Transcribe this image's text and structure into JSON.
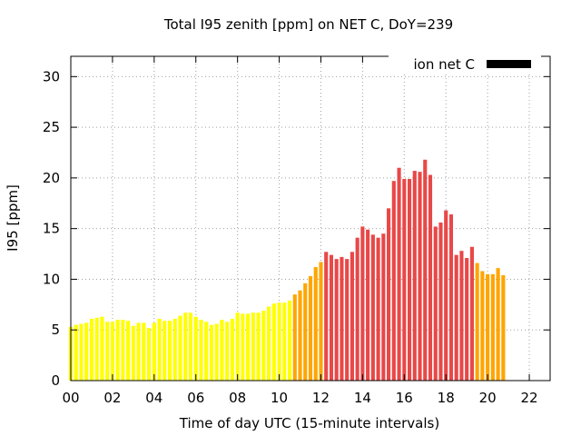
{
  "chart_data": {
    "type": "bar",
    "title": "Total I95 zenith [ppm] on NET C, DoY=239",
    "xlabel": "Time of day UTC (15-minute intervals)",
    "ylabel": "I95 [ppm]",
    "xlim": [
      0,
      23
    ],
    "ylim": [
      0,
      32
    ],
    "xticks": [
      "00",
      "02",
      "04",
      "06",
      "08",
      "10",
      "12",
      "14",
      "16",
      "18",
      "20",
      "22"
    ],
    "yticks": [
      "0",
      "5",
      "10",
      "15",
      "20",
      "25",
      "30"
    ],
    "grid": true,
    "legend": {
      "position": "top-right",
      "label": "ion net C",
      "swatch_color": "#000000"
    },
    "color_levels": {
      "low": "#ffff00",
      "medium": "#ffa500",
      "high": "#e84848"
    },
    "bar_width_hours": 0.18,
    "start_hour": 0,
    "interval_hours": 0.25,
    "values": [
      5.3,
      5.5,
      5.6,
      5.7,
      6.1,
      6.2,
      6.3,
      5.8,
      5.8,
      6.0,
      6.0,
      5.9,
      5.4,
      5.7,
      5.7,
      5.2,
      5.7,
      6.1,
      5.9,
      5.9,
      6.1,
      6.4,
      6.7,
      6.7,
      6.3,
      6.0,
      5.8,
      5.5,
      5.6,
      6.0,
      5.8,
      6.1,
      6.7,
      6.6,
      6.6,
      6.7,
      6.7,
      6.9,
      7.3,
      7.6,
      7.7,
      7.7,
      7.9,
      8.5,
      8.9,
      9.6,
      10.3,
      11.2,
      11.7,
      12.7,
      12.4,
      12.0,
      12.2,
      12.0,
      12.7,
      14.1,
      15.2,
      14.9,
      14.4,
      14.1,
      14.5,
      17.0,
      19.7,
      21.0,
      19.9,
      19.9,
      20.7,
      20.6,
      21.8,
      20.3,
      15.2,
      15.6,
      16.8,
      16.4,
      12.4,
      12.8,
      12.1,
      13.2,
      11.6,
      10.8,
      10.5,
      10.5,
      11.1,
      10.4
    ],
    "levels": [
      "low",
      "low",
      "low",
      "low",
      "low",
      "low",
      "low",
      "low",
      "low",
      "low",
      "low",
      "low",
      "low",
      "low",
      "low",
      "low",
      "low",
      "low",
      "low",
      "low",
      "low",
      "low",
      "low",
      "low",
      "low",
      "low",
      "low",
      "low",
      "low",
      "low",
      "low",
      "low",
      "low",
      "low",
      "low",
      "low",
      "low",
      "low",
      "low",
      "low",
      "low",
      "low",
      "low",
      "medium",
      "medium",
      "medium",
      "medium",
      "medium",
      "medium",
      "high",
      "high",
      "high",
      "high",
      "high",
      "high",
      "high",
      "high",
      "high",
      "high",
      "high",
      "high",
      "high",
      "high",
      "high",
      "high",
      "high",
      "high",
      "high",
      "high",
      "high",
      "high",
      "high",
      "high",
      "high",
      "high",
      "high",
      "high",
      "high",
      "medium",
      "medium",
      "medium",
      "medium",
      "medium",
      "medium"
    ]
  }
}
